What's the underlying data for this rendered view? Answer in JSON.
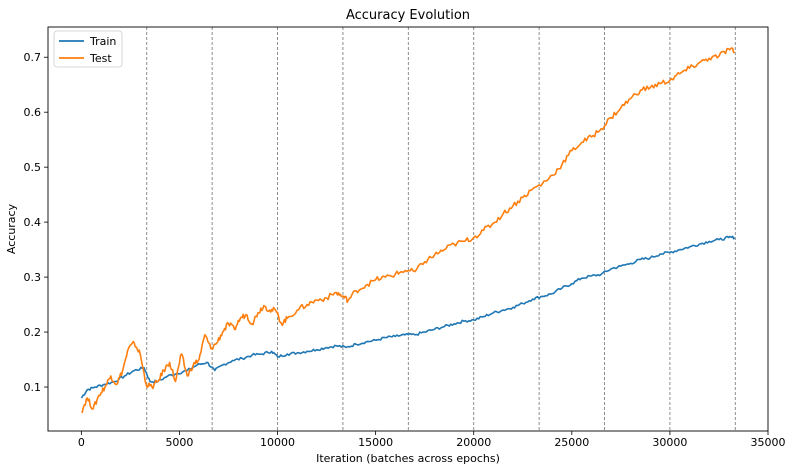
{
  "chart_data": {
    "type": "line",
    "title": "Accuracy Evolution",
    "xlabel": "Iteration (batches across epochs)",
    "ylabel": "Accuracy",
    "xlim": [
      -1700,
      35000
    ],
    "ylim": [
      0.02,
      0.755
    ],
    "xticks": [
      0,
      5000,
      10000,
      15000,
      20000,
      25000,
      30000,
      35000
    ],
    "xtick_labels": [
      "0",
      "5000",
      "10000",
      "15000",
      "20000",
      "25000",
      "30000",
      "35000"
    ],
    "yticks": [
      0.1,
      0.2,
      0.3,
      0.4,
      0.5,
      0.6,
      0.7
    ],
    "ytick_labels": [
      "0.1",
      "0.2",
      "0.3",
      "0.4",
      "0.5",
      "0.6",
      "0.7"
    ],
    "epoch_boundaries": [
      3333,
      6667,
      10000,
      13333,
      16667,
      20000,
      23333,
      26667,
      30000,
      33333
    ],
    "legend_position": "upper-left",
    "series": [
      {
        "name": "Train",
        "color": "#1f77b4",
        "x": [
          0,
          300,
          700,
          1200,
          1700,
          2200,
          2700,
          3200,
          3500,
          3900,
          4400,
          4900,
          5400,
          5900,
          6400,
          6800,
          7200,
          7700,
          8200,
          8700,
          9200,
          9700,
          10000,
          10500,
          11000,
          11500,
          12000,
          12500,
          13000,
          13500,
          14000,
          14500,
          15000,
          15500,
          16000,
          16500,
          17000,
          17500,
          18000,
          18500,
          19000,
          19500,
          20000,
          20500,
          21000,
          21500,
          22000,
          22500,
          23000,
          23500,
          24000,
          24500,
          25000,
          25500,
          26000,
          26500,
          27000,
          27500,
          28000,
          28500,
          29000,
          29500,
          30000,
          30500,
          31000,
          31500,
          32000,
          32500,
          33000,
          33300
        ],
        "y": [
          0.08,
          0.095,
          0.1,
          0.105,
          0.11,
          0.12,
          0.13,
          0.135,
          0.11,
          0.11,
          0.12,
          0.125,
          0.13,
          0.14,
          0.145,
          0.13,
          0.14,
          0.148,
          0.152,
          0.158,
          0.16,
          0.165,
          0.155,
          0.16,
          0.162,
          0.165,
          0.168,
          0.172,
          0.175,
          0.172,
          0.178,
          0.182,
          0.185,
          0.19,
          0.192,
          0.195,
          0.195,
          0.2,
          0.205,
          0.21,
          0.215,
          0.22,
          0.222,
          0.228,
          0.235,
          0.24,
          0.245,
          0.252,
          0.26,
          0.265,
          0.27,
          0.28,
          0.288,
          0.298,
          0.302,
          0.305,
          0.315,
          0.32,
          0.325,
          0.332,
          0.335,
          0.342,
          0.345,
          0.35,
          0.355,
          0.36,
          0.365,
          0.368,
          0.372,
          0.372
        ]
      },
      {
        "name": "Test",
        "color": "#ff7f0e",
        "x": [
          0,
          300,
          600,
          900,
          1200,
          1500,
          1800,
          2100,
          2400,
          2700,
          3000,
          3300,
          3600,
          3900,
          4200,
          4500,
          4800,
          5100,
          5400,
          5700,
          6000,
          6300,
          6600,
          6900,
          7200,
          7500,
          7800,
          8100,
          8400,
          8700,
          9000,
          9300,
          9600,
          9900,
          10200,
          10500,
          11000,
          11500,
          12000,
          12500,
          13000,
          13300,
          13600,
          14000,
          14500,
          15000,
          15500,
          16000,
          16500,
          17000,
          17500,
          18000,
          18500,
          19000,
          19500,
          20000,
          20500,
          21000,
          21500,
          22000,
          22500,
          23000,
          23500,
          24000,
          24500,
          25000,
          25500,
          26000,
          26500,
          27000,
          27500,
          28000,
          28500,
          29000,
          29500,
          30000,
          30500,
          31000,
          31500,
          32000,
          32500,
          33000,
          33300
        ],
        "y": [
          0.055,
          0.08,
          0.06,
          0.085,
          0.1,
          0.12,
          0.105,
          0.13,
          0.17,
          0.18,
          0.16,
          0.105,
          0.1,
          0.11,
          0.13,
          0.145,
          0.11,
          0.16,
          0.12,
          0.14,
          0.15,
          0.195,
          0.17,
          0.18,
          0.2,
          0.215,
          0.205,
          0.225,
          0.232,
          0.215,
          0.235,
          0.248,
          0.24,
          0.24,
          0.215,
          0.225,
          0.24,
          0.25,
          0.258,
          0.262,
          0.272,
          0.265,
          0.258,
          0.275,
          0.285,
          0.295,
          0.3,
          0.305,
          0.312,
          0.31,
          0.328,
          0.34,
          0.35,
          0.36,
          0.365,
          0.372,
          0.385,
          0.398,
          0.415,
          0.43,
          0.445,
          0.46,
          0.47,
          0.485,
          0.505,
          0.53,
          0.545,
          0.555,
          0.57,
          0.59,
          0.608,
          0.625,
          0.64,
          0.645,
          0.652,
          0.658,
          0.67,
          0.68,
          0.69,
          0.698,
          0.702,
          0.715,
          0.71
        ]
      }
    ]
  }
}
